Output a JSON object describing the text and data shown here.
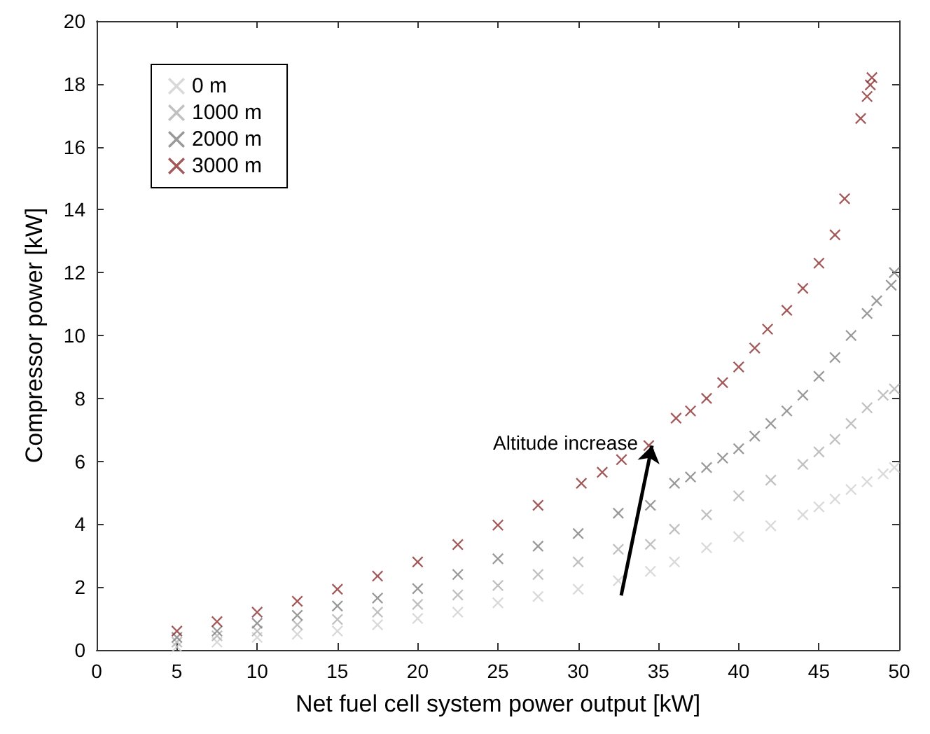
{
  "chart_data": {
    "type": "scatter",
    "xlabel": "Net fuel cell system power output [kW]",
    "ylabel": "Compressor power [kW]",
    "xlim": [
      0,
      50
    ],
    "ylim": [
      0,
      20
    ],
    "xticks": [
      0,
      5,
      10,
      15,
      20,
      25,
      30,
      35,
      40,
      45,
      50
    ],
    "yticks": [
      0,
      2,
      4,
      6,
      8,
      10,
      12,
      14,
      16,
      18,
      20
    ],
    "grid": false,
    "legend": "top left",
    "marker": "cross",
    "annotations": [
      {
        "text": "Altitude increase",
        "x": 34.6,
        "y": 6.5
      }
    ],
    "series": [
      {
        "name": "0 m",
        "color": "#d0d0d0",
        "x": [
          5,
          7.5,
          10,
          12.5,
          15,
          17.5,
          20,
          22.5,
          25,
          27.5,
          30,
          32.5,
          34.5,
          36,
          38,
          40,
          42,
          44,
          45,
          46,
          47,
          48,
          49,
          49.7
        ],
        "values": [
          0.1,
          0.25,
          0.4,
          0.5,
          0.6,
          0.8,
          1.0,
          1.2,
          1.5,
          1.7,
          1.93,
          2.2,
          2.5,
          2.8,
          3.25,
          3.6,
          3.95,
          4.3,
          4.55,
          4.8,
          5.1,
          5.35,
          5.6,
          5.8
        ]
      },
      {
        "name": "1000 m",
        "color": "#b0b0b0",
        "x": [
          5,
          7.5,
          10,
          12.5,
          15,
          17.5,
          20,
          22.5,
          25,
          27.5,
          30,
          32.5,
          34.5,
          36,
          38,
          40,
          42,
          44,
          45,
          46,
          47,
          48,
          49,
          49.7
        ],
        "values": [
          0.25,
          0.45,
          0.6,
          0.8,
          0.97,
          1.2,
          1.45,
          1.75,
          2.05,
          2.4,
          2.8,
          3.2,
          3.36,
          3.84,
          4.3,
          4.9,
          5.4,
          5.9,
          6.3,
          6.7,
          7.2,
          7.7,
          8.1,
          8.3
        ]
      },
      {
        "name": "2000 m",
        "color": "#808080",
        "x": [
          5,
          7.5,
          10,
          12.5,
          15,
          17.5,
          20,
          22.5,
          25,
          27.5,
          30,
          32.5,
          34.5,
          36,
          37,
          38,
          39,
          40,
          41,
          42,
          43,
          44,
          45,
          46,
          47,
          48,
          48.6,
          49.5,
          49.7
        ],
        "values": [
          0.4,
          0.6,
          0.85,
          1.1,
          1.4,
          1.65,
          1.95,
          2.4,
          2.9,
          3.3,
          3.7,
          4.35,
          4.6,
          5.3,
          5.5,
          5.8,
          6.1,
          6.4,
          6.8,
          7.2,
          7.6,
          8.1,
          8.7,
          9.3,
          10.0,
          10.7,
          11.1,
          11.6,
          12.0
        ]
      },
      {
        "name": "3000 m",
        "color": "#8b2e2e",
        "x": [
          5,
          7.5,
          10,
          12.5,
          15,
          17.5,
          20,
          22.5,
          25,
          27.5,
          30.2,
          31.5,
          32.7,
          34.4,
          36.1,
          37,
          38,
          39,
          40,
          41,
          41.8,
          43,
          44,
          45,
          46,
          46.6,
          47.6,
          48,
          48.2,
          48.3
        ],
        "values": [
          0.6,
          0.9,
          1.2,
          1.55,
          1.93,
          2.35,
          2.8,
          3.35,
          3.97,
          4.6,
          5.3,
          5.65,
          6.05,
          6.5,
          7.37,
          7.6,
          8.0,
          8.5,
          9.0,
          9.6,
          10.2,
          10.8,
          11.5,
          12.3,
          13.2,
          14.35,
          16.9,
          17.6,
          17.97,
          18.2
        ]
      }
    ]
  }
}
